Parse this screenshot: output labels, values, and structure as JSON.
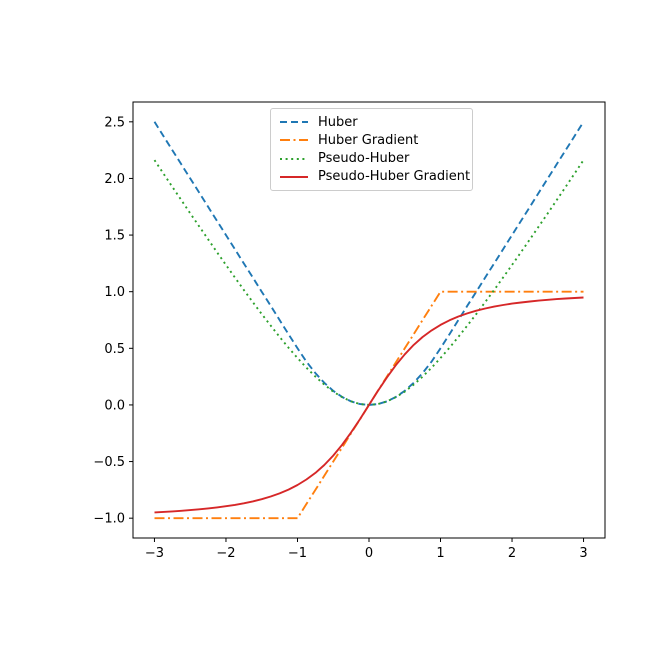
{
  "chart_data": {
    "type": "line",
    "title": "",
    "xlabel": "",
    "ylabel": "",
    "grid": false,
    "legend_position": "upper-center",
    "xlim": [
      -3.3,
      3.3
    ],
    "ylim": [
      -1.175,
      2.675
    ],
    "xticks": [
      -3,
      -2,
      -1,
      0,
      1,
      2,
      3
    ],
    "xtick_labels": [
      "−3",
      "−2",
      "−1",
      "0",
      "1",
      "2",
      "3"
    ],
    "yticks": [
      -1.0,
      -0.5,
      0.0,
      0.5,
      1.0,
      1.5,
      2.0,
      2.5
    ],
    "ytick_labels": [
      "−1.0",
      "−0.5",
      "0.0",
      "0.5",
      "1.0",
      "1.5",
      "2.0",
      "2.5"
    ],
    "x": [
      -3,
      -2.875,
      -2.75,
      -2.625,
      -2.5,
      -2.375,
      -2.25,
      -2.125,
      -2,
      -1.875,
      -1.75,
      -1.625,
      -1.5,
      -1.375,
      -1.25,
      -1.125,
      -1,
      -0.875,
      -0.75,
      -0.625,
      -0.5,
      -0.375,
      -0.25,
      -0.125,
      0,
      0.125,
      0.25,
      0.375,
      0.5,
      0.625,
      0.75,
      0.875,
      1,
      1.125,
      1.25,
      1.375,
      1.5,
      1.625,
      1.75,
      1.875,
      2,
      2.125,
      2.25,
      2.375,
      2.5,
      2.625,
      2.75,
      2.875,
      3
    ],
    "series": [
      {
        "name": "Huber",
        "color": "#1f77b4",
        "style": "dashed",
        "values": [
          2.5,
          2.375,
          2.25,
          2.125,
          2,
          1.875,
          1.75,
          1.625,
          1.5,
          1.375,
          1.25,
          1.125,
          1,
          0.875,
          0.75,
          0.625,
          0.5,
          0.3828,
          0.2813,
          0.1953,
          0.125,
          0.0703,
          0.0313,
          0.0078,
          0,
          0.0078,
          0.0313,
          0.0703,
          0.125,
          0.1953,
          0.2813,
          0.3828,
          0.5,
          0.625,
          0.75,
          0.875,
          1,
          1.125,
          1.25,
          1.375,
          1.5,
          1.625,
          1.75,
          1.875,
          2,
          2.125,
          2.25,
          2.375,
          2.5
        ]
      },
      {
        "name": "Huber Gradient",
        "color": "#ff7f0e",
        "style": "dashdot",
        "values": [
          -1,
          -1,
          -1,
          -1,
          -1,
          -1,
          -1,
          -1,
          -1,
          -1,
          -1,
          -1,
          -1,
          -1,
          -1,
          -1,
          -1,
          -0.875,
          -0.75,
          -0.625,
          -0.5,
          -0.375,
          -0.25,
          -0.125,
          0,
          0.125,
          0.25,
          0.375,
          0.5,
          0.625,
          0.75,
          0.875,
          1,
          1,
          1,
          1,
          1,
          1,
          1,
          1,
          1,
          1,
          1,
          1,
          1,
          1,
          1,
          1,
          1
        ]
      },
      {
        "name": "Pseudo-Huber",
        "color": "#2ca02c",
        "style": "dotted",
        "values": [
          2.1623,
          2.044,
          1.9262,
          1.809,
          1.6926,
          1.5769,
          1.4622,
          1.3485,
          1.2361,
          1.125,
          1.0156,
          0.908,
          0.8028,
          0.7002,
          0.6008,
          0.5052,
          0.4142,
          0.3288,
          0.25,
          0.1793,
          0.118,
          0.068,
          0.0308,
          0.0078,
          0,
          0.0078,
          0.0308,
          0.068,
          0.118,
          0.1793,
          0.25,
          0.3288,
          0.4142,
          0.5052,
          0.6008,
          0.7002,
          0.8028,
          0.908,
          1.0156,
          1.125,
          1.2361,
          1.3485,
          1.4622,
          1.5769,
          1.6926,
          1.809,
          1.9262,
          2.044,
          2.1623
        ]
      },
      {
        "name": "Pseudo-Huber Gradient",
        "color": "#d62728",
        "style": "solid",
        "values": [
          -0.9487,
          -0.9445,
          -0.9398,
          -0.9345,
          -0.9285,
          -0.9216,
          -0.9138,
          -0.9048,
          -0.8944,
          -0.8824,
          -0.8682,
          -0.8517,
          -0.8321,
          -0.8087,
          -0.7809,
          -0.7474,
          -0.7071,
          -0.6585,
          -0.6,
          -0.53,
          -0.4472,
          -0.3511,
          -0.2425,
          -0.124,
          0,
          0.124,
          0.2425,
          0.3511,
          0.4472,
          0.53,
          0.6,
          0.6585,
          0.7071,
          0.7474,
          0.7809,
          0.8087,
          0.8321,
          0.8517,
          0.8682,
          0.8824,
          0.8944,
          0.9048,
          0.9138,
          0.9216,
          0.9285,
          0.9345,
          0.9398,
          0.9445,
          0.9487
        ]
      }
    ],
    "colors": {
      "spine": "#000000",
      "background": "#ffffff",
      "legend_border": "#cccccc"
    }
  }
}
